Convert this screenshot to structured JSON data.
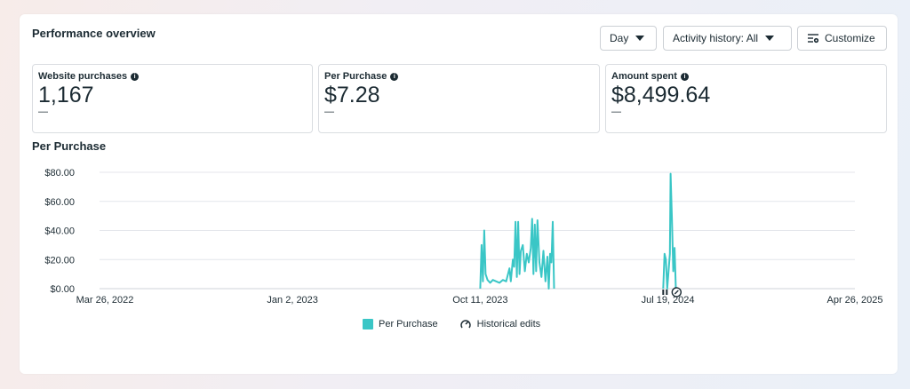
{
  "page": {
    "title": "Performance overview"
  },
  "controls": {
    "day_label": "Day",
    "activity_label": "Activity history: All",
    "customize_label": "Customize"
  },
  "metrics": [
    {
      "label": "Website purchases",
      "value": "1,167",
      "delta": "—"
    },
    {
      "label": "Per Purchase",
      "value": "$7.28",
      "delta": "—"
    },
    {
      "label": "Amount spent",
      "value": "$8,499.64",
      "delta": "—"
    }
  ],
  "chart_title": "Per Purchase",
  "legend": {
    "series_label": "Per Purchase",
    "edits_label": "Historical edits"
  },
  "colors": {
    "series": "#3ac6c6",
    "grid": "#e4e6eb",
    "text": "#1c2b33"
  },
  "chart_data": {
    "type": "line",
    "title": "Per Purchase",
    "xlabel": "",
    "ylabel": "",
    "ylim": [
      0,
      80
    ],
    "yticks": [
      "$0.00",
      "$20.00",
      "$40.00",
      "$60.00",
      "$80.00"
    ],
    "xlim": [
      "2022-03-26",
      "2025-04-26"
    ],
    "xticks": [
      "Mar 26, 2022",
      "Jan 2, 2023",
      "Oct 11, 2023",
      "Jul 19, 2024",
      "Apr 26, 2025"
    ],
    "grid": true,
    "legend": "bottom",
    "series": [
      {
        "name": "Per Purchase",
        "points": [
          [
            "2023-10-11",
            0
          ],
          [
            "2023-10-13",
            30
          ],
          [
            "2023-10-15",
            5
          ],
          [
            "2023-10-17",
            40
          ],
          [
            "2023-10-19",
            10
          ],
          [
            "2023-10-22",
            6
          ],
          [
            "2023-10-26",
            4
          ],
          [
            "2023-10-30",
            6
          ],
          [
            "2023-11-04",
            5
          ],
          [
            "2023-11-09",
            4
          ],
          [
            "2023-11-14",
            6
          ],
          [
            "2023-11-19",
            5
          ],
          [
            "2023-11-24",
            14
          ],
          [
            "2023-11-26",
            5
          ],
          [
            "2023-11-29",
            20
          ],
          [
            "2023-12-01",
            15
          ],
          [
            "2023-12-03",
            46
          ],
          [
            "2023-12-05",
            8
          ],
          [
            "2023-12-07",
            46
          ],
          [
            "2023-12-09",
            10
          ],
          [
            "2023-12-11",
            26
          ],
          [
            "2023-12-14",
            30
          ],
          [
            "2023-12-17",
            12
          ],
          [
            "2023-12-20",
            24
          ],
          [
            "2023-12-23",
            18
          ],
          [
            "2023-12-26",
            28
          ],
          [
            "2023-12-28",
            48
          ],
          [
            "2023-12-30",
            10
          ],
          [
            "2024-01-01",
            44
          ],
          [
            "2024-01-03",
            12
          ],
          [
            "2024-01-05",
            47
          ],
          [
            "2024-01-08",
            18
          ],
          [
            "2024-01-11",
            8
          ],
          [
            "2024-01-14",
            26
          ],
          [
            "2024-01-17",
            5
          ],
          [
            "2024-01-20",
            22
          ],
          [
            "2024-01-22",
            0
          ],
          [
            "2024-01-24",
            24
          ],
          [
            "2024-01-26",
            18
          ],
          [
            "2024-01-28",
            46
          ],
          [
            "2024-01-30",
            0
          ],
          [
            "2024-07-12",
            0
          ],
          [
            "2024-07-14",
            24
          ],
          [
            "2024-07-16",
            20
          ],
          [
            "2024-07-18",
            0
          ],
          [
            "2024-07-20",
            12
          ],
          [
            "2024-07-22",
            24
          ],
          [
            "2024-07-23",
            79
          ],
          [
            "2024-07-25",
            48
          ],
          [
            "2024-07-27",
            12
          ],
          [
            "2024-07-29",
            28
          ],
          [
            "2024-07-31",
            0
          ]
        ]
      }
    ]
  }
}
